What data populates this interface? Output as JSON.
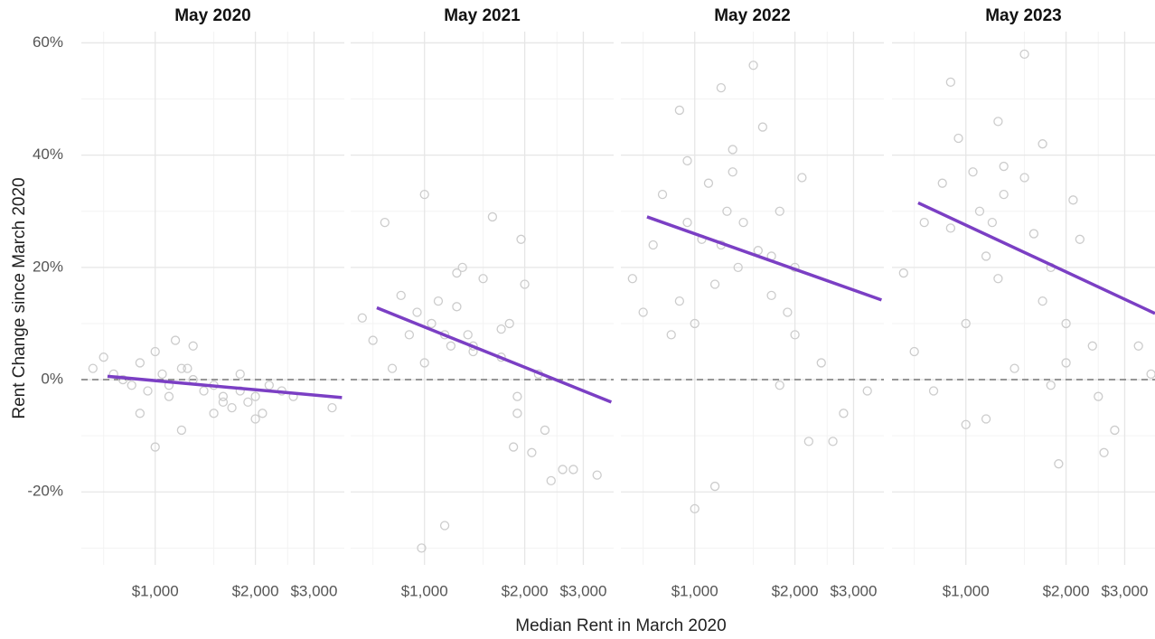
{
  "xlabel": "Median Rent in March 2020",
  "ylabel": "Rent Change since March 2020",
  "ylim": [
    -33,
    62
  ],
  "yticks": [
    {
      "value": 60,
      "label": "60%"
    },
    {
      "value": 40,
      "label": "40%"
    },
    {
      "value": 20,
      "label": "20%"
    },
    {
      "value": 0,
      "label": "0%"
    },
    {
      "value": -20,
      "label": "-20%"
    }
  ],
  "yminor": [
    50,
    30,
    10,
    -10,
    -30
  ],
  "xlim": [
    600,
    3700
  ],
  "xscale": "log",
  "xminor": [
    700,
    1500,
    2500
  ],
  "hline": 0,
  "point_color": "#cccccc",
  "line_color": "#7b3fc4",
  "chart_data": [
    {
      "type": "scatter",
      "title": "May 2020",
      "xticks": [
        {
          "value": 1000,
          "label": "$1,000"
        },
        {
          "value": 2000,
          "label": "$2,000"
        },
        {
          "value": 3000,
          "label": "$3,000"
        }
      ],
      "x": [
        650,
        700,
        750,
        800,
        850,
        900,
        950,
        1000,
        1050,
        1100,
        1150,
        1200,
        1250,
        1300,
        1400,
        1500,
        1600,
        1700,
        1800,
        1900,
        2000,
        2100,
        2200,
        2400,
        2600,
        3400,
        1000,
        1100,
        1300,
        1600,
        900,
        1200,
        1800,
        2000,
        1500
      ],
      "y": [
        2,
        4,
        1,
        0,
        -1,
        3,
        -2,
        -12,
        1,
        -1,
        7,
        -9,
        2,
        0,
        -2,
        -1,
        -3,
        -5,
        -2,
        -4,
        -3,
        -6,
        -1,
        -2,
        -3,
        -5,
        5,
        -3,
        6,
        -4,
        -6,
        2,
        1,
        -7,
        -6
      ],
      "trend": {
        "x": [
          719,
          3640
        ],
        "y": [
          0.6,
          -3.2
        ]
      }
    },
    {
      "type": "scatter",
      "title": "May 2021",
      "xticks": [
        {
          "value": 1000,
          "label": "$1,000"
        },
        {
          "value": 2000,
          "label": "$2,000"
        },
        {
          "value": 3000,
          "label": "$3,000"
        }
      ],
      "x": [
        650,
        700,
        760,
        800,
        850,
        900,
        950,
        980,
        1000,
        1050,
        1100,
        1150,
        1200,
        1250,
        1300,
        1350,
        1400,
        1500,
        1600,
        1700,
        1800,
        1850,
        1900,
        2000,
        2100,
        2200,
        2400,
        2600,
        2800,
        3300,
        1000,
        1150,
        1250,
        1900,
        1950,
        2300,
        1400,
        1700
      ],
      "y": [
        11,
        7,
        28,
        2,
        15,
        8,
        12,
        -30,
        33,
        10,
        14,
        -26,
        6,
        13,
        20,
        8,
        5,
        18,
        29,
        4,
        10,
        -12,
        -6,
        17,
        -13,
        1,
        -18,
        -16,
        -16,
        -17,
        3,
        8,
        19,
        -3,
        25,
        -9,
        6,
        9
      ],
      "trend": {
        "x": [
          719,
          3640
        ],
        "y": [
          12.8,
          -4
        ]
      }
    },
    {
      "type": "scatter",
      "title": "May 2022",
      "xticks": [
        {
          "value": 1000,
          "label": "$1,000"
        },
        {
          "value": 2000,
          "label": "$2,000"
        },
        {
          "value": 3000,
          "label": "$3,000"
        }
      ],
      "x": [
        650,
        700,
        750,
        800,
        850,
        900,
        950,
        1000,
        1000,
        1050,
        1100,
        1150,
        1200,
        1250,
        1300,
        1350,
        1400,
        1500,
        1550,
        1600,
        1700,
        1800,
        1900,
        2000,
        2100,
        2200,
        2400,
        2600,
        2800,
        3300,
        950,
        1150,
        1300,
        1700,
        1800,
        2000,
        1200,
        900
      ],
      "y": [
        18,
        12,
        24,
        33,
        8,
        48,
        39,
        -23,
        10,
        25,
        35,
        -19,
        52,
        30,
        41,
        20,
        28,
        56,
        23,
        45,
        15,
        30,
        12,
        20,
        36,
        -11,
        3,
        -11,
        -6,
        -2,
        28,
        17,
        37,
        22,
        -1,
        8,
        24,
        14
      ],
      "trend": {
        "x": [
          719,
          3640
        ],
        "y": [
          29,
          14.2
        ]
      }
    },
    {
      "type": "scatter",
      "title": "May 2023",
      "xticks": [
        {
          "value": 1000,
          "label": "$1,000"
        },
        {
          "value": 2000,
          "label": "$2,000"
        },
        {
          "value": 3000,
          "label": "$3,000"
        }
      ],
      "x": [
        650,
        700,
        750,
        800,
        850,
        900,
        950,
        1000,
        1000,
        1050,
        1100,
        1150,
        1200,
        1250,
        1300,
        1400,
        1500,
        1600,
        1700,
        1800,
        1900,
        2000,
        2100,
        2200,
        2400,
        2600,
        2800,
        3300,
        900,
        1150,
        1300,
        1700,
        1800,
        2000,
        1250,
        1500,
        3600,
        2500
      ],
      "y": [
        19,
        5,
        28,
        -2,
        35,
        53,
        43,
        -8,
        10,
        37,
        30,
        -7,
        28,
        46,
        38,
        2,
        58,
        26,
        42,
        20,
        -15,
        10,
        32,
        25,
        6,
        -13,
        -9,
        6,
        27,
        22,
        33,
        14,
        -1,
        3,
        18,
        36,
        1,
        -3
      ],
      "trend": {
        "x": [
          719,
          3700
        ],
        "y": [
          31.5,
          11.8
        ]
      }
    }
  ]
}
